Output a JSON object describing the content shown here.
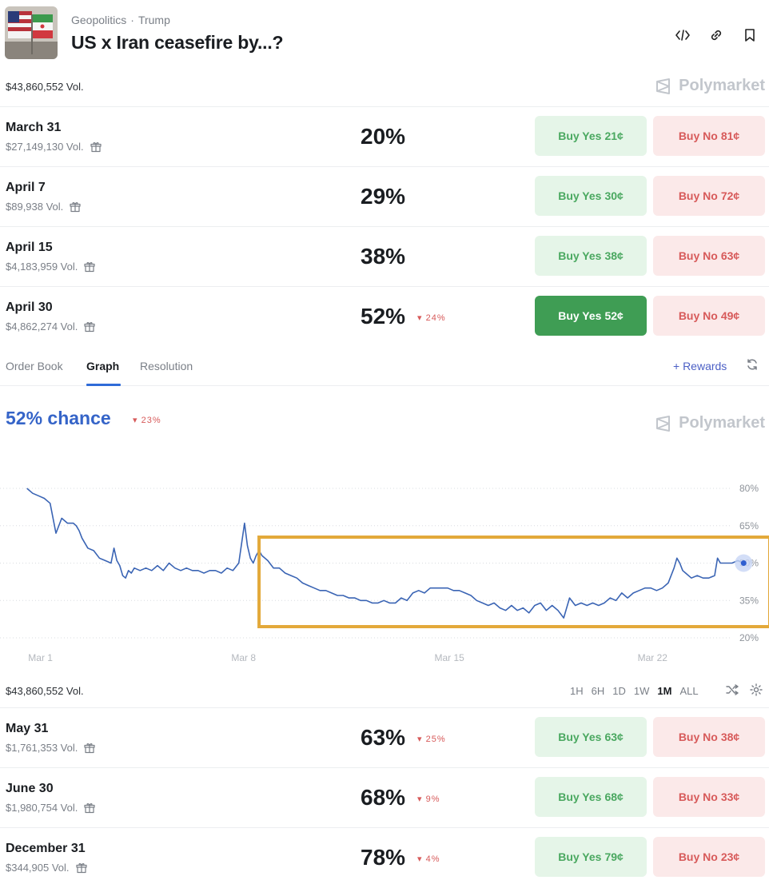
{
  "header": {
    "category": "Geopolitics",
    "separator": "·",
    "subcategory": "Trump",
    "title": "US x Iran ceasefire by...?",
    "icons": [
      "code-embed-icon",
      "link-icon",
      "bookmark-icon"
    ]
  },
  "brand": {
    "name": "Polymarket"
  },
  "total_volume": "$43,860,552 Vol.",
  "markets_top": [
    {
      "name": "March 31",
      "volume": "$27,149,130 Vol.",
      "percent": "20%",
      "change": "",
      "yes": "Buy Yes",
      "yes_price": "21¢",
      "no": "Buy No",
      "no_price": "81¢",
      "selected": false
    },
    {
      "name": "April 7",
      "volume": "$89,938 Vol.",
      "percent": "29%",
      "change": "",
      "yes": "Buy Yes",
      "yes_price": "30¢",
      "no": "Buy No",
      "no_price": "72¢",
      "selected": false
    },
    {
      "name": "April 15",
      "volume": "$4,183,959 Vol.",
      "percent": "38%",
      "change": "",
      "yes": "Buy Yes",
      "yes_price": "38¢",
      "no": "Buy No",
      "no_price": "63¢",
      "selected": false
    },
    {
      "name": "April 30",
      "volume": "$4,862,274 Vol.",
      "percent": "52%",
      "change": "▾ 24%",
      "yes": "Buy Yes",
      "yes_price": "52¢",
      "no": "Buy No",
      "no_price": "49¢",
      "selected": true
    }
  ],
  "tabs": [
    {
      "label": "Order Book",
      "active": false
    },
    {
      "label": "Graph",
      "active": true
    },
    {
      "label": "Resolution",
      "active": false
    }
  ],
  "rewards_label": "+ Rewards",
  "graph": {
    "chance_label": "52% chance",
    "chance_change": "▾ 23%",
    "time_ranges": [
      "1H",
      "6H",
      "1D",
      "1W",
      "1M",
      "ALL"
    ],
    "active_range": "1M"
  },
  "chart_data": {
    "type": "line",
    "title": "",
    "xlabel": "",
    "ylabel": "",
    "x_ticks": [
      "Mar 1",
      "Mar 8",
      "Mar 15",
      "Mar 22"
    ],
    "y_ticks": [
      "80%",
      "65%",
      "50%",
      "35%",
      "20%"
    ],
    "ylim": [
      20,
      80
    ],
    "grid": true,
    "line_color": "#3a64b4",
    "highlight_box_color": "#e3a93a",
    "highlight_x_range": [
      8.9,
      26.5
    ],
    "series": [
      {
        "x": [
          0.9,
          1.1,
          1.3,
          1.5,
          1.7,
          1.9,
          2.1,
          2.3,
          2.5,
          2.6,
          2.7,
          2.8,
          3.0,
          3.2,
          3.4,
          3.6,
          3.8,
          3.9,
          4.0,
          4.1,
          4.2,
          4.3,
          4.4,
          4.5,
          4.6,
          4.8,
          5.0,
          5.2,
          5.4,
          5.6,
          5.8,
          6.0,
          6.2,
          6.4,
          6.6,
          6.8,
          7.0,
          7.2,
          7.4,
          7.6,
          7.8,
          8.0,
          8.2,
          8.4,
          8.5,
          8.6,
          8.7,
          8.8,
          8.9,
          9.0,
          9.2,
          9.4,
          9.6,
          9.8,
          10.0,
          10.2,
          10.4,
          10.6,
          10.8,
          11.0,
          11.2,
          11.4,
          11.6,
          11.8,
          12.0,
          12.2,
          12.4,
          12.6,
          12.8,
          13.0,
          13.2,
          13.4,
          13.6,
          13.8,
          14.0,
          14.2,
          14.4,
          14.6,
          14.8,
          15.0,
          15.2,
          15.4,
          15.6,
          15.8,
          16.0,
          16.2,
          16.4,
          16.6,
          16.8,
          17.0,
          17.2,
          17.4,
          17.6,
          17.8,
          18.0,
          18.2,
          18.4,
          18.6,
          18.8,
          19.0,
          19.2,
          19.4,
          19.6,
          19.8,
          20.0,
          20.2,
          20.4,
          20.6,
          20.8,
          21.0,
          21.2,
          21.4,
          21.6,
          21.8,
          22.0,
          22.2,
          22.4,
          22.6,
          22.8,
          23.0,
          23.2,
          23.3,
          23.4,
          23.5,
          23.6,
          23.8,
          24.0,
          24.2,
          24.4,
          24.6,
          24.7,
          24.8,
          25.0,
          25.2,
          25.4,
          25.6
        ],
        "y": [
          80,
          78,
          77,
          76,
          74,
          62,
          68,
          66,
          66,
          65,
          63,
          60,
          56,
          55,
          52,
          51,
          50,
          56,
          51,
          49,
          45,
          44,
          47,
          46,
          48,
          47,
          48,
          47,
          49,
          47,
          50,
          48,
          47,
          48,
          47,
          47,
          46,
          47,
          47,
          46,
          48,
          47,
          50,
          66,
          57,
          52,
          50,
          53,
          55,
          53,
          51,
          48,
          48,
          46,
          45,
          44,
          42,
          41,
          40,
          39,
          39,
          38,
          37,
          37,
          36,
          36,
          35,
          35,
          34,
          34,
          35,
          34,
          34,
          36,
          35,
          38,
          39,
          38,
          40,
          40,
          40,
          40,
          39,
          39,
          38,
          37,
          35,
          34,
          33,
          34,
          32,
          31,
          33,
          31,
          32,
          30,
          33,
          34,
          31,
          33,
          31,
          28,
          36,
          33,
          34,
          33,
          34,
          33,
          34,
          36,
          35,
          38,
          36,
          38,
          39,
          40,
          40,
          39,
          40,
          42,
          48,
          52,
          50,
          47,
          46,
          44,
          45,
          44,
          44,
          45,
          52,
          50,
          50,
          50,
          51,
          50
        ]
      }
    ]
  },
  "markets_bottom": [
    {
      "name": "May 31",
      "volume": "$1,761,353 Vol.",
      "percent": "63%",
      "change": "▾ 25%",
      "yes": "Buy Yes",
      "yes_price": "63¢",
      "no": "Buy No",
      "no_price": "38¢",
      "selected": false
    },
    {
      "name": "June 30",
      "volume": "$1,980,754 Vol.",
      "percent": "68%",
      "change": "▾ 9%",
      "yes": "Buy Yes",
      "yes_price": "68¢",
      "no": "Buy No",
      "no_price": "33¢",
      "selected": false
    },
    {
      "name": "December 31",
      "volume": "$344,905 Vol.",
      "percent": "78%",
      "change": "▾ 4%",
      "yes": "Buy Yes",
      "yes_price": "79¢",
      "no": "Buy No",
      "no_price": "23¢",
      "selected": false
    }
  ]
}
